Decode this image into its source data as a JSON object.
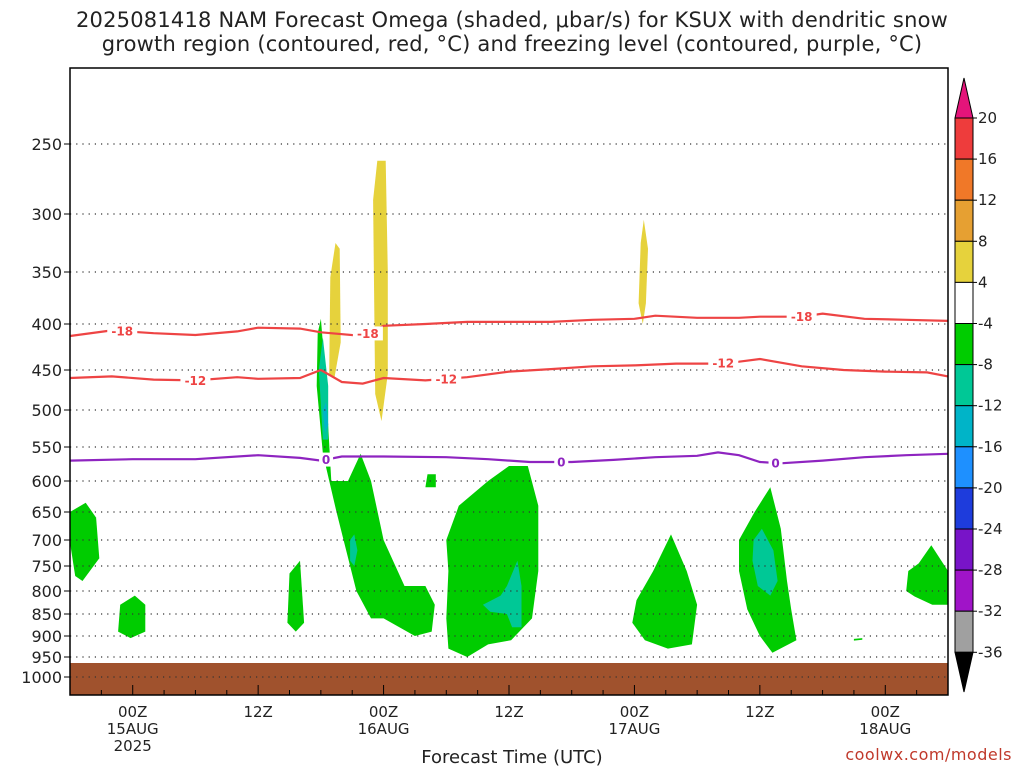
{
  "title_line1": "2025081418 NAM Forecast Omega (shaded, μbar/s) for KSUX with dendritic snow",
  "title_line2": "growth region (contoured, red, °C) and freezing level (contoured, purple, °C)",
  "x_axis_title": "Forecast Time (UTC)",
  "credit": "coolwx.com/models",
  "colors": {
    "snow_contour": "#ee4444",
    "freezing_contour": "#8e24c0",
    "ground": "#a0522d",
    "omega_neg4": "#00cc00",
    "omega_neg8": "#00c896",
    "omega_neg12": "#00b4c8",
    "omega_pos4": "#e6d23c"
  },
  "chart_data": {
    "type": "heatmap",
    "description_free": true,
    "y_ticks": [
      "250",
      "300",
      "350",
      "400",
      "450",
      "500",
      "550",
      "600",
      "650",
      "700",
      "750",
      "800",
      "850",
      "900",
      "950",
      "1000"
    ],
    "y_tick_values": [
      250,
      300,
      350,
      400,
      450,
      500,
      550,
      600,
      650,
      700,
      750,
      800,
      850,
      900,
      950,
      1000
    ],
    "x_ticks": [
      {
        "hour": 6,
        "lines": [
          "00Z",
          "15AUG",
          "2025"
        ]
      },
      {
        "hour": 18,
        "lines": [
          "12Z"
        ]
      },
      {
        "hour": 30,
        "lines": [
          "00Z",
          "16AUG"
        ]
      },
      {
        "hour": 42,
        "lines": [
          "12Z"
        ]
      },
      {
        "hour": 54,
        "lines": [
          "00Z",
          "17AUG"
        ]
      },
      {
        "hour": 66,
        "lines": [
          "12Z"
        ]
      },
      {
        "hour": 78,
        "lines": [
          "00Z",
          "18AUG"
        ]
      }
    ],
    "x_range_hours": [
      0,
      84
    ],
    "colorbar": {
      "labels": [
        "20",
        "16",
        "12",
        "8",
        "4",
        "-4",
        "-8",
        "-12",
        "-16",
        "-20",
        "-24",
        "-28",
        "-32",
        "-36"
      ],
      "colors": [
        "#e4147a",
        "#ee3c3c",
        "#f07828",
        "#e6a032",
        "#e6d23c",
        "#ffffff",
        "#00cc00",
        "#00c896",
        "#00b4c8",
        "#1e90ff",
        "#1e3cdc",
        "#7814c8",
        "#a014c8",
        "#a0a0a0",
        "#000000"
      ]
    },
    "contours": [
      {
        "label": "-18",
        "color": "#ee4444",
        "points": [
          [
            0,
            413
          ],
          [
            4,
            407
          ],
          [
            8,
            410
          ],
          [
            12,
            412
          ],
          [
            16,
            408
          ],
          [
            18,
            404
          ],
          [
            22,
            405
          ],
          [
            24,
            409
          ],
          [
            28,
            413
          ],
          [
            30,
            402
          ],
          [
            34,
            400
          ],
          [
            38,
            398
          ],
          [
            42,
            398
          ],
          [
            46,
            398
          ],
          [
            50,
            396
          ],
          [
            54,
            395
          ],
          [
            56,
            392
          ],
          [
            60,
            394
          ],
          [
            64,
            394
          ],
          [
            66,
            393
          ],
          [
            70,
            393
          ],
          [
            72,
            390
          ],
          [
            76,
            395
          ],
          [
            80,
            396
          ],
          [
            84,
            397
          ]
        ],
        "label_hours": [
          5,
          28.5,
          70
        ]
      },
      {
        "label": "-12",
        "color": "#ee4444",
        "points": [
          [
            0,
            460
          ],
          [
            4,
            458
          ],
          [
            8,
            462
          ],
          [
            12,
            463
          ],
          [
            16,
            459
          ],
          [
            18,
            461
          ],
          [
            22,
            460
          ],
          [
            24,
            450
          ],
          [
            26,
            465
          ],
          [
            28,
            467
          ],
          [
            30,
            460
          ],
          [
            34,
            463
          ],
          [
            38,
            459
          ],
          [
            42,
            452
          ],
          [
            46,
            449
          ],
          [
            50,
            446
          ],
          [
            54,
            445
          ],
          [
            58,
            443
          ],
          [
            62,
            443
          ],
          [
            64,
            441
          ],
          [
            66,
            438
          ],
          [
            70,
            446
          ],
          [
            74,
            450
          ],
          [
            78,
            452
          ],
          [
            82,
            453
          ],
          [
            84,
            458
          ]
        ],
        "label_hours": [
          12,
          36,
          62.5
        ]
      },
      {
        "label": "0",
        "color": "#8e24c0",
        "points": [
          [
            0,
            570
          ],
          [
            6,
            568
          ],
          [
            12,
            568
          ],
          [
            18,
            562
          ],
          [
            22,
            566
          ],
          [
            24,
            570
          ],
          [
            26,
            564
          ],
          [
            30,
            564
          ],
          [
            36,
            565
          ],
          [
            40,
            568
          ],
          [
            44,
            572
          ],
          [
            48,
            572
          ],
          [
            52,
            569
          ],
          [
            56,
            565
          ],
          [
            60,
            563
          ],
          [
            62,
            558
          ],
          [
            64,
            562
          ],
          [
            66,
            572
          ],
          [
            68,
            574
          ],
          [
            72,
            570
          ],
          [
            76,
            565
          ],
          [
            80,
            562
          ],
          [
            84,
            560
          ]
        ],
        "label_hours": [
          24.5,
          47,
          67.5
        ]
      }
    ],
    "omega_regions": [
      {
        "level": "-4",
        "pts": [
          [
            0,
            705
          ],
          [
            0,
            650
          ],
          [
            1.5,
            635
          ],
          [
            2.5,
            660
          ],
          [
            2.8,
            735
          ],
          [
            1.2,
            780
          ],
          [
            0.5,
            770
          ]
        ]
      },
      {
        "level": "-4",
        "pts": [
          [
            4.6,
            890
          ],
          [
            4.8,
            830
          ],
          [
            6.2,
            810
          ],
          [
            7.2,
            830
          ],
          [
            7.2,
            890
          ],
          [
            5.8,
            905
          ]
        ]
      },
      {
        "level": "-4",
        "pts": [
          [
            20.8,
            870
          ],
          [
            21,
            765
          ],
          [
            22,
            740
          ],
          [
            22.4,
            870
          ],
          [
            21.6,
            890
          ]
        ]
      },
      {
        "level": "-4",
        "pts": [
          [
            23.7,
            410
          ],
          [
            24,
            395
          ],
          [
            24.4,
            450
          ],
          [
            25,
            600
          ],
          [
            26.6,
            600
          ],
          [
            27.8,
            560
          ],
          [
            28.8,
            600
          ],
          [
            30,
            700
          ],
          [
            32,
            790
          ],
          [
            34,
            790
          ],
          [
            34.9,
            830
          ],
          [
            34.6,
            890
          ],
          [
            33,
            900
          ],
          [
            30,
            860
          ],
          [
            28.8,
            860
          ],
          [
            27.4,
            800
          ],
          [
            25.5,
            650
          ],
          [
            24.2,
            560
          ],
          [
            23.6,
            470
          ]
        ]
      },
      {
        "level": "-4",
        "pts": [
          [
            34,
            610
          ],
          [
            34.2,
            590
          ],
          [
            35,
            590
          ],
          [
            35,
            610
          ]
        ]
      },
      {
        "level": "-4",
        "pts": [
          [
            36,
            700
          ],
          [
            37.2,
            640
          ],
          [
            40,
            600
          ],
          [
            42,
            578
          ],
          [
            43.8,
            578
          ],
          [
            44.8,
            640
          ],
          [
            44.8,
            760
          ],
          [
            44.2,
            860
          ],
          [
            42.2,
            910
          ],
          [
            40,
            920
          ],
          [
            38,
            950
          ],
          [
            36.2,
            930
          ],
          [
            36,
            860
          ],
          [
            36.2,
            760
          ]
        ]
      },
      {
        "level": "-4",
        "pts": [
          [
            53.8,
            870
          ],
          [
            54.2,
            820
          ],
          [
            55.8,
            760
          ],
          [
            57.5,
            690
          ],
          [
            59,
            760
          ],
          [
            60,
            830
          ],
          [
            59.5,
            920
          ],
          [
            57.2,
            930
          ],
          [
            55,
            910
          ]
        ]
      },
      {
        "level": "-4",
        "pts": [
          [
            64,
            760
          ],
          [
            64,
            700
          ],
          [
            65.5,
            650
          ],
          [
            67,
            610
          ],
          [
            68,
            680
          ],
          [
            68.6,
            780
          ],
          [
            69,
            840
          ],
          [
            69.5,
            910
          ],
          [
            67.2,
            940
          ],
          [
            66,
            900
          ],
          [
            64.8,
            840
          ]
        ]
      },
      {
        "level": "-4",
        "pts": [
          [
            75,
            907
          ],
          [
            75.8,
            905
          ],
          [
            75.8,
            909
          ],
          [
            75,
            911
          ]
        ]
      },
      {
        "level": "-4",
        "pts": [
          [
            80,
            800
          ],
          [
            80.2,
            760
          ],
          [
            81.2,
            745
          ],
          [
            82.4,
            710
          ],
          [
            84,
            760
          ],
          [
            84,
            830
          ],
          [
            82.5,
            830
          ],
          [
            80.8,
            812
          ]
        ]
      },
      {
        "level": "-8",
        "pts": [
          [
            23.8,
            450
          ],
          [
            24.2,
            415
          ],
          [
            24.7,
            470
          ],
          [
            24.7,
            540
          ],
          [
            24.2,
            540
          ]
        ]
      },
      {
        "level": "-8",
        "pts": [
          [
            26.8,
            700
          ],
          [
            27.2,
            690
          ],
          [
            27.5,
            720
          ],
          [
            27.2,
            750
          ],
          [
            26.8,
            740
          ]
        ]
      },
      {
        "level": "-8",
        "pts": [
          [
            41.2,
            810
          ],
          [
            41.8,
            790
          ],
          [
            42.8,
            740
          ],
          [
            43.2,
            790
          ],
          [
            43.2,
            880
          ],
          [
            42.3,
            880
          ],
          [
            41.8,
            850
          ],
          [
            40.2,
            845
          ],
          [
            39.5,
            830
          ]
        ]
      },
      {
        "level": "-8",
        "pts": [
          [
            65.3,
            740
          ],
          [
            65.4,
            700
          ],
          [
            66.2,
            680
          ],
          [
            67.3,
            720
          ],
          [
            67.7,
            780
          ],
          [
            67,
            810
          ],
          [
            65.8,
            790
          ]
        ]
      },
      {
        "level": "-12",
        "pts": [
          [
            24.2,
            500
          ],
          [
            24.5,
            490
          ],
          [
            24.7,
            520
          ],
          [
            24.4,
            530
          ]
        ]
      },
      {
        "level": "4",
        "pts": [
          [
            24.8,
            455
          ],
          [
            24.9,
            355
          ],
          [
            25.4,
            325
          ],
          [
            25.8,
            330
          ],
          [
            25.9,
            420
          ],
          [
            25.3,
            460
          ]
        ]
      },
      {
        "level": "4",
        "pts": [
          [
            29.2,
            480
          ],
          [
            29,
            290
          ],
          [
            29.4,
            262
          ],
          [
            30.2,
            262
          ],
          [
            30.4,
            350
          ],
          [
            30.4,
            455
          ],
          [
            29.8,
            515
          ]
        ]
      },
      {
        "level": "4",
        "pts": [
          [
            54.4,
            380
          ],
          [
            54.6,
            325
          ],
          [
            54.9,
            305
          ],
          [
            55.3,
            330
          ],
          [
            55.1,
            380
          ],
          [
            54.8,
            400
          ]
        ]
      }
    ]
  }
}
